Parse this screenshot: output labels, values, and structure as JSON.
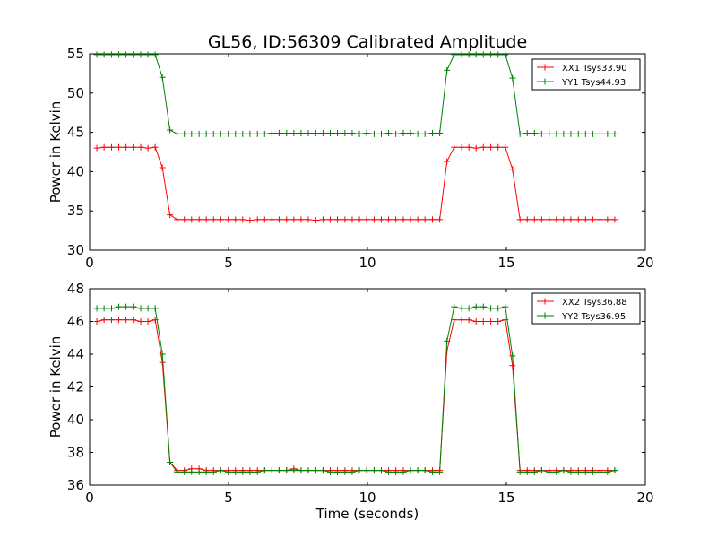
{
  "figure": {
    "title": "GL56, ID:56309 Calibrated Amplitude"
  },
  "colors": {
    "red": "#ff0000",
    "green": "#008000",
    "axis": "#000000",
    "background": "#ffffff"
  },
  "chart_data": [
    {
      "type": "line",
      "title": "GL56, ID:56309 Calibrated Amplitude",
      "xlabel": "",
      "ylabel": "Power in Kelvin",
      "xlim": [
        0,
        20
      ],
      "ylim": [
        30,
        55
      ],
      "xticks": [
        0,
        5,
        10,
        15,
        20
      ],
      "yticks": [
        30,
        35,
        40,
        45,
        50,
        55
      ],
      "grid": false,
      "legend_position": "top-right",
      "x": [
        0.26,
        0.52,
        0.79,
        1.05,
        1.31,
        1.57,
        1.84,
        2.1,
        2.36,
        2.62,
        2.89,
        3.15,
        3.41,
        3.67,
        3.94,
        4.2,
        4.46,
        4.72,
        4.99,
        5.25,
        5.51,
        5.77,
        6.04,
        6.3,
        6.56,
        6.82,
        7.09,
        7.35,
        7.61,
        7.87,
        8.14,
        8.4,
        8.66,
        8.92,
        9.19,
        9.45,
        9.71,
        9.97,
        10.24,
        10.5,
        10.76,
        11.02,
        11.29,
        11.55,
        11.81,
        12.07,
        12.34,
        12.6,
        12.86,
        13.12,
        13.39,
        13.65,
        13.91,
        14.17,
        14.44,
        14.7,
        14.96,
        15.22,
        15.49,
        15.75,
        16.01,
        16.27,
        16.54,
        16.8,
        17.06,
        17.32,
        17.59,
        17.85,
        18.11,
        18.37,
        18.64,
        18.9
      ],
      "series": [
        {
          "name": "XX1 Tsys33.90",
          "color": "#ff0000",
          "values": [
            43.0,
            43.1,
            43.1,
            43.1,
            43.1,
            43.1,
            43.1,
            43.0,
            43.1,
            40.5,
            34.5,
            33.9,
            33.9,
            33.9,
            33.9,
            33.9,
            33.9,
            33.9,
            33.9,
            33.9,
            33.9,
            33.8,
            33.9,
            33.9,
            33.9,
            33.9,
            33.9,
            33.9,
            33.9,
            33.9,
            33.8,
            33.9,
            33.9,
            33.9,
            33.9,
            33.9,
            33.9,
            33.9,
            33.9,
            33.9,
            33.9,
            33.9,
            33.9,
            33.9,
            33.9,
            33.9,
            33.9,
            33.9,
            41.3,
            43.1,
            43.1,
            43.1,
            43.0,
            43.1,
            43.1,
            43.1,
            43.1,
            40.3,
            33.9,
            33.9,
            33.9,
            33.9,
            33.9,
            33.9,
            33.9,
            33.9,
            33.9,
            33.9,
            33.9,
            33.9,
            33.9,
            33.9
          ]
        },
        {
          "name": "YY1 Tsys44.93",
          "color": "#008000",
          "values": [
            54.9,
            54.9,
            54.9,
            54.9,
            54.9,
            54.9,
            54.9,
            54.9,
            54.9,
            52.0,
            45.3,
            44.8,
            44.8,
            44.8,
            44.8,
            44.8,
            44.8,
            44.8,
            44.8,
            44.8,
            44.8,
            44.8,
            44.8,
            44.8,
            44.9,
            44.9,
            44.9,
            44.9,
            44.9,
            44.9,
            44.9,
            44.9,
            44.9,
            44.9,
            44.9,
            44.9,
            44.8,
            44.9,
            44.8,
            44.8,
            44.9,
            44.8,
            44.9,
            44.9,
            44.8,
            44.8,
            44.9,
            44.9,
            52.9,
            54.9,
            54.9,
            54.9,
            54.9,
            54.9,
            54.9,
            54.9,
            54.9,
            51.9,
            44.8,
            44.9,
            44.9,
            44.8,
            44.8,
            44.8,
            44.8,
            44.8,
            44.8,
            44.8,
            44.8,
            44.8,
            44.8,
            44.8
          ]
        }
      ]
    },
    {
      "type": "line",
      "title": "",
      "xlabel": "Time (seconds)",
      "ylabel": "Power in Kelvin",
      "xlim": [
        0,
        20
      ],
      "ylim": [
        36,
        48
      ],
      "xticks": [
        0,
        5,
        10,
        15,
        20
      ],
      "yticks": [
        36,
        38,
        40,
        42,
        44,
        46,
        48
      ],
      "grid": false,
      "legend_position": "top-right",
      "x": [
        0.26,
        0.52,
        0.79,
        1.05,
        1.31,
        1.57,
        1.84,
        2.1,
        2.36,
        2.62,
        2.89,
        3.15,
        3.41,
        3.67,
        3.94,
        4.2,
        4.46,
        4.72,
        4.99,
        5.25,
        5.51,
        5.77,
        6.04,
        6.3,
        6.56,
        6.82,
        7.09,
        7.35,
        7.61,
        7.87,
        8.14,
        8.4,
        8.66,
        8.92,
        9.19,
        9.45,
        9.71,
        9.97,
        10.24,
        10.5,
        10.76,
        11.02,
        11.29,
        11.55,
        11.81,
        12.07,
        12.34,
        12.6,
        12.86,
        13.12,
        13.39,
        13.65,
        13.91,
        14.17,
        14.44,
        14.7,
        14.96,
        15.22,
        15.49,
        15.75,
        16.01,
        16.27,
        16.54,
        16.8,
        17.06,
        17.32,
        17.59,
        17.85,
        18.11,
        18.37,
        18.64,
        18.9
      ],
      "series": [
        {
          "name": "XX2 Tsys36.88",
          "color": "#ff0000",
          "values": [
            46.0,
            46.1,
            46.1,
            46.1,
            46.1,
            46.1,
            46.0,
            46.0,
            46.1,
            43.5,
            37.4,
            36.9,
            36.9,
            37.0,
            37.0,
            36.9,
            36.9,
            36.9,
            36.9,
            36.9,
            36.9,
            36.9,
            36.9,
            36.9,
            36.9,
            36.9,
            36.9,
            37.0,
            36.9,
            36.9,
            36.9,
            36.9,
            36.9,
            36.9,
            36.9,
            36.9,
            36.9,
            36.9,
            36.9,
            36.9,
            36.9,
            36.9,
            36.9,
            36.9,
            36.9,
            36.9,
            36.9,
            36.9,
            44.2,
            46.1,
            46.1,
            46.1,
            46.0,
            46.0,
            46.0,
            46.0,
            46.1,
            43.3,
            36.9,
            36.9,
            36.9,
            36.9,
            36.9,
            36.9,
            36.9,
            36.9,
            36.9,
            36.9,
            36.9,
            36.9,
            36.9,
            36.9
          ]
        },
        {
          "name": "YY2 Tsys36.95",
          "color": "#008000",
          "values": [
            46.8,
            46.8,
            46.8,
            46.9,
            46.9,
            46.9,
            46.8,
            46.8,
            46.8,
            44.0,
            37.4,
            36.8,
            36.8,
            36.8,
            36.8,
            36.8,
            36.8,
            36.9,
            36.8,
            36.8,
            36.8,
            36.8,
            36.8,
            36.9,
            36.9,
            36.9,
            36.9,
            36.9,
            36.9,
            36.9,
            36.9,
            36.9,
            36.8,
            36.8,
            36.8,
            36.8,
            36.9,
            36.9,
            36.9,
            36.9,
            36.8,
            36.8,
            36.8,
            36.9,
            36.9,
            36.9,
            36.8,
            36.8,
            44.8,
            46.9,
            46.8,
            46.8,
            46.9,
            46.9,
            46.8,
            46.8,
            46.9,
            43.9,
            36.8,
            36.8,
            36.8,
            36.9,
            36.8,
            36.8,
            36.9,
            36.8,
            36.8,
            36.8,
            36.8,
            36.8,
            36.8,
            36.9
          ]
        }
      ]
    }
  ]
}
